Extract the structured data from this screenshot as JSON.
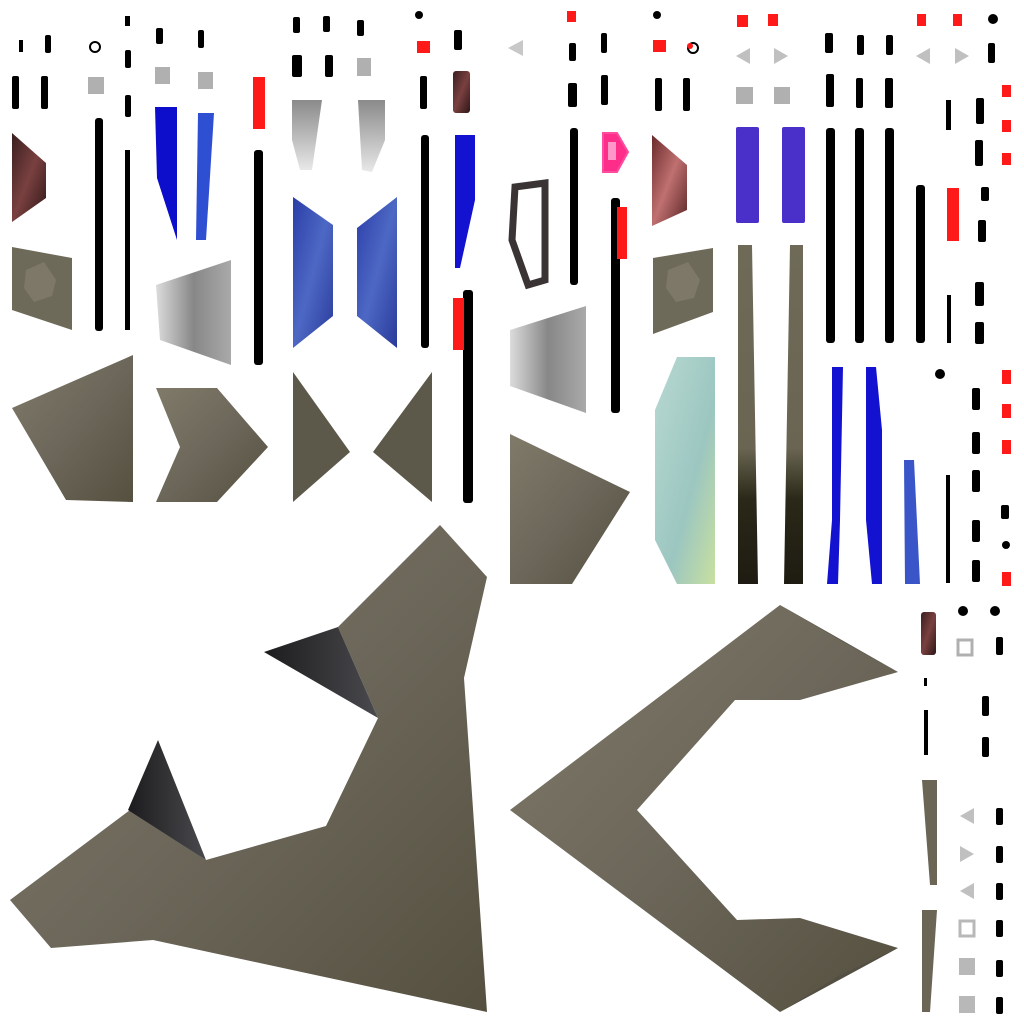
{
  "colors": {
    "background": "#ffffff",
    "olive": "#6e6a5c",
    "olive_dark": "#4f4b41",
    "shadow": "#2b2b2e",
    "black": "#000000",
    "blue": "#1010c8",
    "blue_light": "#3a55c0",
    "indigo": "#4a2fc8",
    "red": "#ff1a1a",
    "magenta": "#ff2d8a",
    "gray": "#b0b0b0",
    "gray_light": "#d0d0d0",
    "maroon": "#5a2a2a",
    "teal_glass": "#a8cec8"
  }
}
